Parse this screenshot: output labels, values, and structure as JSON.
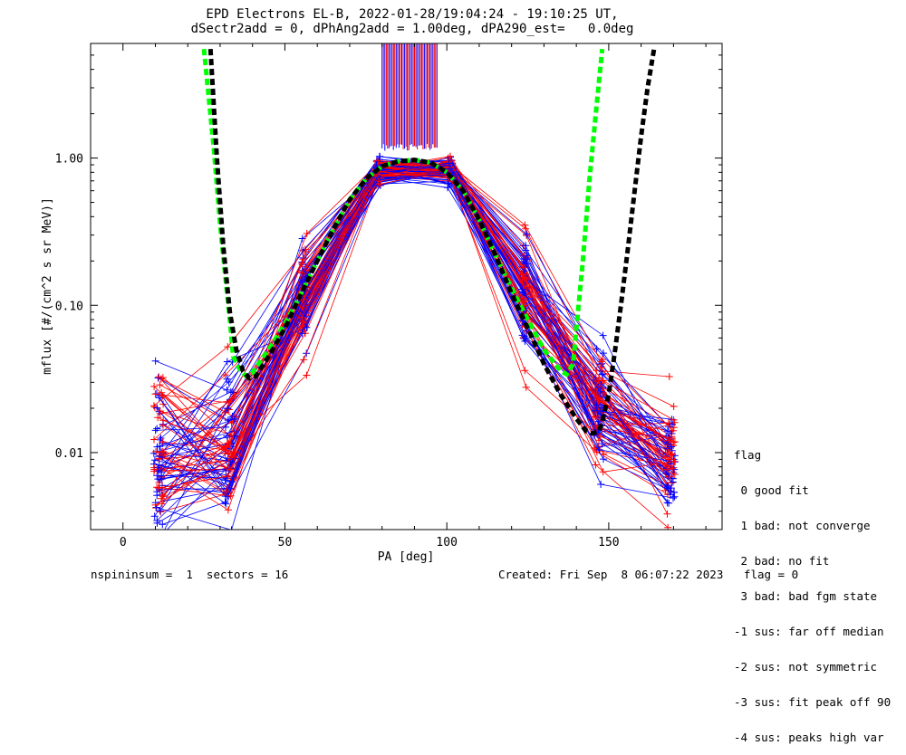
{
  "header": {
    "title_line1": "EPD Electrons EL-B, 2022-01-28/19:04:24 - 19:10:25 UT,",
    "title_line2": "dSectr2add = 0, dPhAng2add = 1.00deg, dPA290_est=   0.0deg"
  },
  "legend": {
    "title": "flag",
    "items": [
      " 0 good fit",
      " 1 bad: not converge",
      " 2 bad: no fit",
      " 3 bad: bad fgm state",
      "-1 sus: far off median",
      "-2 sus: not symmetric",
      "-3 sus: fit peak off 90",
      "-4 sus: peaks high var"
    ]
  },
  "footer": {
    "left": "nspininsum =  1  sectors = 16",
    "right": "Created: Fri Sep  8 06:07:22 2023   flag = 0"
  },
  "colors": {
    "red": "#ff0000",
    "blue": "#0000ff",
    "green": "#00ff00",
    "black": "#000000"
  },
  "chart_data": {
    "type": "line",
    "xlabel": "PA [deg]",
    "ylabel": "mflux [#/(cm^2 s sr MeV)]",
    "xlim": [
      -10,
      185
    ],
    "ylim": [
      0.003,
      6.0
    ],
    "ylog": true,
    "xticks": [
      0,
      50,
      100,
      150
    ],
    "yticks": [
      {
        "value": 0.01,
        "label": "0.01"
      },
      {
        "value": 0.1,
        "label": "0.10"
      },
      {
        "value": 1.0,
        "label": "1.00"
      }
    ],
    "sector_pa": [
      11,
      33,
      56,
      79,
      101,
      124,
      147,
      169
    ],
    "mean_profile": [
      0.009,
      0.011,
      0.12,
      0.82,
      0.82,
      0.12,
      0.02,
      0.009
    ],
    "num_traces": 90,
    "fits": [
      {
        "color": "green",
        "style": "dashed",
        "x": [
          25,
          28,
          30,
          32,
          33,
          34,
          36,
          38,
          40,
          45,
          50,
          55,
          60,
          65,
          70,
          75,
          80,
          85,
          90,
          95,
          100,
          105,
          110,
          115,
          120,
          125,
          130,
          135,
          137,
          139,
          140,
          142,
          144,
          146,
          148
        ],
        "y": [
          5.5,
          1.2,
          0.35,
          0.13,
          0.08,
          0.045,
          0.037,
          0.033,
          0.035,
          0.05,
          0.075,
          0.12,
          0.2,
          0.33,
          0.52,
          0.72,
          0.88,
          0.95,
          0.97,
          0.93,
          0.8,
          0.6,
          0.38,
          0.22,
          0.13,
          0.08,
          0.05,
          0.036,
          0.034,
          0.04,
          0.07,
          0.2,
          0.7,
          2.0,
          5.5
        ]
      },
      {
        "color": "black",
        "style": "dashed",
        "x": [
          27,
          29,
          31,
          33,
          35,
          37,
          39,
          41,
          45,
          50,
          55,
          60,
          65,
          70,
          75,
          80,
          85,
          90,
          95,
          100,
          105,
          110,
          115,
          120,
          125,
          130,
          135,
          140,
          143,
          145,
          147,
          148,
          150,
          152,
          154,
          156,
          158,
          160,
          162,
          164
        ],
        "y": [
          5.5,
          1.0,
          0.25,
          0.09,
          0.05,
          0.036,
          0.032,
          0.033,
          0.045,
          0.07,
          0.12,
          0.2,
          0.33,
          0.52,
          0.72,
          0.88,
          0.95,
          0.97,
          0.93,
          0.8,
          0.6,
          0.38,
          0.22,
          0.12,
          0.07,
          0.04,
          0.025,
          0.017,
          0.014,
          0.0135,
          0.014,
          0.016,
          0.025,
          0.05,
          0.11,
          0.25,
          0.6,
          1.4,
          3.0,
          5.5
        ]
      }
    ],
    "spikes": {
      "x_min": 80,
      "x_max": 97,
      "y_bottom": 1.18,
      "count": 40
    }
  }
}
